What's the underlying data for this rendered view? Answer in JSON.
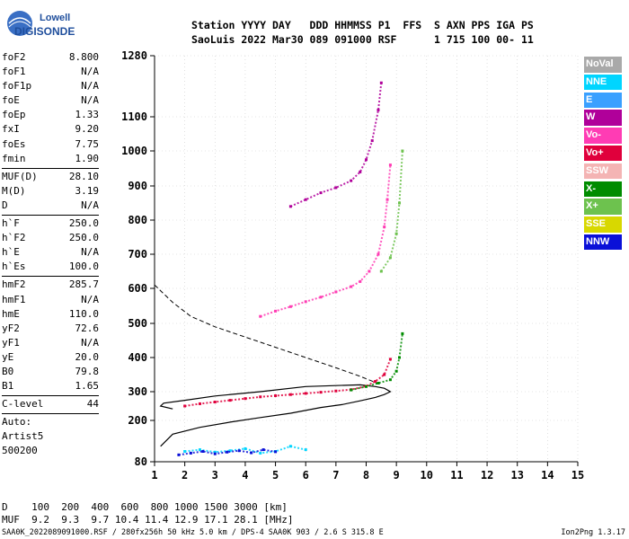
{
  "logo": {
    "line1": "Lowell",
    "line2": "DIGISONDE"
  },
  "header": {
    "line1": "Station YYYY DAY   DDD HHMMSS P1  FFS  S AXN PPS IGA PS",
    "line2": "SaoLuis 2022 Mar30 089 091000 RSF      1 715 100 00- 11"
  },
  "params": [
    {
      "k": "foF2",
      "v": "8.800"
    },
    {
      "k": "foF1",
      "v": "N/A"
    },
    {
      "k": "foF1p",
      "v": "N/A"
    },
    {
      "k": "foE",
      "v": "N/A"
    },
    {
      "k": "foEp",
      "v": "1.33"
    },
    {
      "k": "fxI",
      "v": "9.20"
    },
    {
      "k": "foEs",
      "v": "7.75"
    },
    {
      "k": "fmin",
      "v": "1.90"
    },
    {
      "k": "MUF(D)",
      "v": "28.10"
    },
    {
      "k": "M(D)",
      "v": "3.19"
    },
    {
      "k": "D",
      "v": "N/A"
    },
    {
      "k": "h`F",
      "v": "250.0"
    },
    {
      "k": "h`F2",
      "v": "250.0"
    },
    {
      "k": "h`E",
      "v": "N/A"
    },
    {
      "k": "h`Es",
      "v": "100.0"
    },
    {
      "k": "hmF2",
      "v": "285.7"
    },
    {
      "k": "hmF1",
      "v": "N/A"
    },
    {
      "k": "hmE",
      "v": "110.0"
    },
    {
      "k": "yF2",
      "v": "72.6"
    },
    {
      "k": "yF1",
      "v": "N/A"
    },
    {
      "k": "yE",
      "v": "20.0"
    },
    {
      "k": "B0",
      "v": "79.8"
    },
    {
      "k": "B1",
      "v": "1.65"
    },
    {
      "k": "C-level",
      "v": "44"
    }
  ],
  "auto": {
    "l1": "Auto:",
    "l2": "Artist5",
    "l3": "500200"
  },
  "legend": [
    {
      "label": "NoVal",
      "color": "#a9a9a9"
    },
    {
      "label": "NNE",
      "color": "#00d5ff"
    },
    {
      "label": "E",
      "color": "#3aa0ff"
    },
    {
      "label": "W",
      "color": "#b0009a"
    },
    {
      "label": "Vo-",
      "color": "#ff3cb4"
    },
    {
      "label": "Vo+",
      "color": "#e0003c"
    },
    {
      "label": "SSW",
      "color": "#f4b4b4"
    },
    {
      "label": "X-",
      "color": "#008c00"
    },
    {
      "label": "X+",
      "color": "#6dc24e"
    },
    {
      "label": "SSE",
      "color": "#d8d800"
    },
    {
      "label": "NNW",
      "color": "#0a10d8"
    }
  ],
  "footer": {
    "d_row": "D    100  200  400  600  800 1000 1500 3000 [km]",
    "muf_row": "MUF  9.2  9.3  9.7 10.4 11.4 12.9 17.1 28.1 [MHz]",
    "credit": "SAA0K_2022089091000.RSF / 280fx256h 50 kHz 5.0 km / DPS-4 SAA0K 903 / 2.6 S 315.8 E",
    "version": "Ion2Png 1.3.17"
  },
  "chart_data": {
    "type": "scatter",
    "xlim": [
      1,
      15
    ],
    "ylim": [
      80,
      1280
    ],
    "xticks": [
      "1",
      "2",
      "3",
      "4",
      "5",
      "6",
      "7",
      "8",
      "9",
      "10",
      "11",
      "12",
      "13",
      "14",
      "15"
    ],
    "yticks": [
      "80",
      "200",
      "300",
      "400",
      "500",
      "600",
      "700",
      "800",
      "900",
      "1000",
      "1100",
      "1280"
    ],
    "ytick_values": [
      80,
      200,
      300,
      400,
      500,
      600,
      700,
      800,
      900,
      1000,
      1100,
      1280
    ],
    "grid": true,
    "series": [
      {
        "name": "Vo+",
        "color": "#e0003c",
        "x": [
          2.0,
          2.5,
          3.0,
          3.5,
          4.0,
          4.5,
          5.0,
          5.5,
          6.0,
          6.5,
          7.0,
          7.5,
          8.0,
          8.3,
          8.6,
          8.8
        ],
        "y": [
          250,
          258,
          264,
          270,
          276,
          282,
          286,
          290,
          294,
          298,
          302,
          306,
          316,
          330,
          350,
          395
        ]
      },
      {
        "name": "X-",
        "color": "#008c00",
        "x": [
          7.5,
          8.0,
          8.4,
          8.8,
          9.0,
          9.1,
          9.2
        ],
        "y": [
          305,
          315,
          325,
          335,
          360,
          400,
          470
        ]
      },
      {
        "name": "Vo-",
        "color": "#ff3cb4",
        "x": [
          4.5,
          5.0,
          5.5,
          6.0,
          6.5,
          7.0,
          7.5,
          7.8,
          8.1,
          8.4,
          8.6,
          8.7,
          8.8
        ],
        "y": [
          520,
          535,
          548,
          562,
          575,
          590,
          605,
          620,
          650,
          700,
          780,
          860,
          960
        ]
      },
      {
        "name": "X+",
        "color": "#6dc24e",
        "x": [
          8.5,
          8.8,
          9.0,
          9.1,
          9.2
        ],
        "y": [
          650,
          690,
          760,
          850,
          1000
        ]
      },
      {
        "name": "W",
        "color": "#b0009a",
        "x": [
          5.5,
          6.0,
          6.5,
          7.0,
          7.5,
          7.8,
          8.0,
          8.2,
          8.4,
          8.5
        ],
        "y": [
          840,
          860,
          880,
          895,
          915,
          940,
          975,
          1030,
          1120,
          1200
        ]
      },
      {
        "name": "NNE",
        "color": "#00d5ff",
        "x": [
          2.0,
          2.5,
          3.0,
          3.5,
          4.0,
          4.5,
          5.0,
          5.5,
          6.0
        ],
        "y": [
          110,
          115,
          108,
          112,
          118,
          105,
          110,
          125,
          115
        ]
      },
      {
        "name": "NNW",
        "color": "#0a10d8",
        "x": [
          1.8,
          2.2,
          2.6,
          3.0,
          3.4,
          3.8,
          4.2,
          4.6,
          5.0
        ],
        "y": [
          100,
          105,
          110,
          103,
          108,
          112,
          106,
          115,
          109
        ]
      }
    ],
    "profile_solid": {
      "x": [
        1.2,
        1.6,
        2.5,
        3.5,
        4.5,
        5.5,
        6.5,
        7.2,
        7.8,
        8.3,
        8.6,
        8.8,
        8.6,
        8.3,
        7.8,
        7.0,
        6.0,
        4.5,
        3.0,
        2.0,
        1.3,
        1.2,
        1.6
      ],
      "y": [
        125,
        160,
        180,
        195,
        210,
        225,
        245,
        255,
        268,
        280,
        290,
        300,
        310,
        315,
        320,
        318,
        315,
        300,
        285,
        270,
        260,
        250,
        240
      ]
    },
    "profile_dashed": {
      "x": [
        1.0,
        1.6,
        2.2,
        3.0,
        4.0,
        5.0,
        6.0,
        7.0,
        7.8,
        8.5
      ],
      "y": [
        610,
        560,
        520,
        490,
        460,
        430,
        400,
        370,
        345,
        320
      ]
    }
  }
}
